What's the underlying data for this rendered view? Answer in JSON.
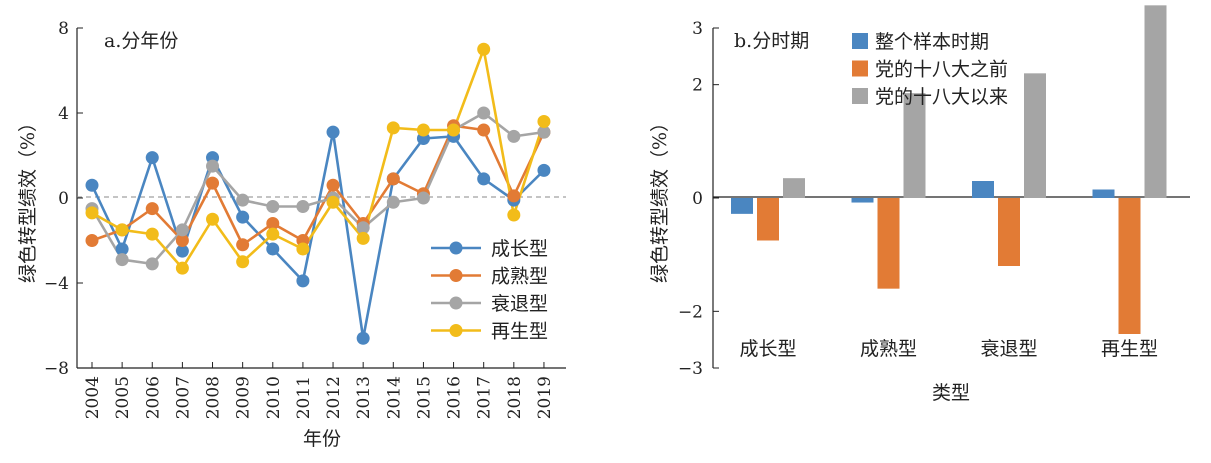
{
  "chart_data": [
    {
      "type": "line",
      "panel_title": "a.分年份",
      "xlabel": "年份",
      "ylabel": "绿色转型绩效（%）",
      "ylim": [
        -8,
        8
      ],
      "yticks": [
        "8",
        "4",
        "0",
        "−4",
        "−8"
      ],
      "categories": [
        "2004",
        "2005",
        "2006",
        "2007",
        "2008",
        "2009",
        "2010",
        "2011",
        "2012",
        "2013",
        "2014",
        "2015",
        "2016",
        "2017",
        "2018",
        "2019"
      ],
      "legend_position": "lower-right",
      "reference_line": 0,
      "series": [
        {
          "name": "成长型",
          "color": "#4A86C1",
          "values": [
            0.6,
            -2.4,
            1.9,
            -2.5,
            1.9,
            -0.9,
            -2.4,
            -3.9,
            3.1,
            -6.6,
            0.9,
            2.8,
            2.9,
            0.9,
            -0.1,
            1.3
          ]
        },
        {
          "name": "成熟型",
          "color": "#E27B35",
          "values": [
            -2.0,
            -1.5,
            -0.5,
            -2.0,
            0.7,
            -2.2,
            -1.2,
            -2.0,
            0.6,
            -1.2,
            0.9,
            0.2,
            3.4,
            3.2,
            0.1,
            3.1
          ]
        },
        {
          "name": "衰退型",
          "color": "#A5A5A5",
          "values": [
            -0.5,
            -2.9,
            -3.1,
            -1.5,
            1.5,
            -0.1,
            -0.4,
            -0.4,
            0.0,
            -1.4,
            -0.2,
            0.0,
            3.2,
            4.0,
            2.9,
            3.1
          ]
        },
        {
          "name": "再生型",
          "color": "#F2BC1A",
          "values": [
            -0.7,
            -1.5,
            -1.7,
            -3.3,
            -1.0,
            -3.0,
            -1.7,
            -2.4,
            -0.2,
            -1.9,
            3.3,
            3.2,
            3.2,
            7.0,
            -0.8,
            3.6
          ]
        }
      ]
    },
    {
      "type": "bar",
      "panel_title": "b.分时期",
      "xlabel": "类型",
      "ylabel": "绿色转型绩效（%）",
      "ylim": [
        -3,
        3
      ],
      "yticks": [
        "3",
        "2",
        "0",
        "−2",
        "−3"
      ],
      "categories": [
        "成长型",
        "成熟型",
        "衰退型",
        "再生型"
      ],
      "legend_position": "top-left",
      "series": [
        {
          "name": "整个样本时期",
          "color": "#4A86C1",
          "values": [
            -0.28,
            -0.08,
            0.3,
            0.15
          ]
        },
        {
          "name": "党的十八大之前",
          "color": "#E27B35",
          "values": [
            -0.75,
            -1.6,
            -1.2,
            -2.4
          ]
        },
        {
          "name": "党的十八大以来",
          "color": "#A5A5A5",
          "values": [
            0.35,
            1.85,
            2.2,
            3.4
          ]
        }
      ]
    }
  ]
}
